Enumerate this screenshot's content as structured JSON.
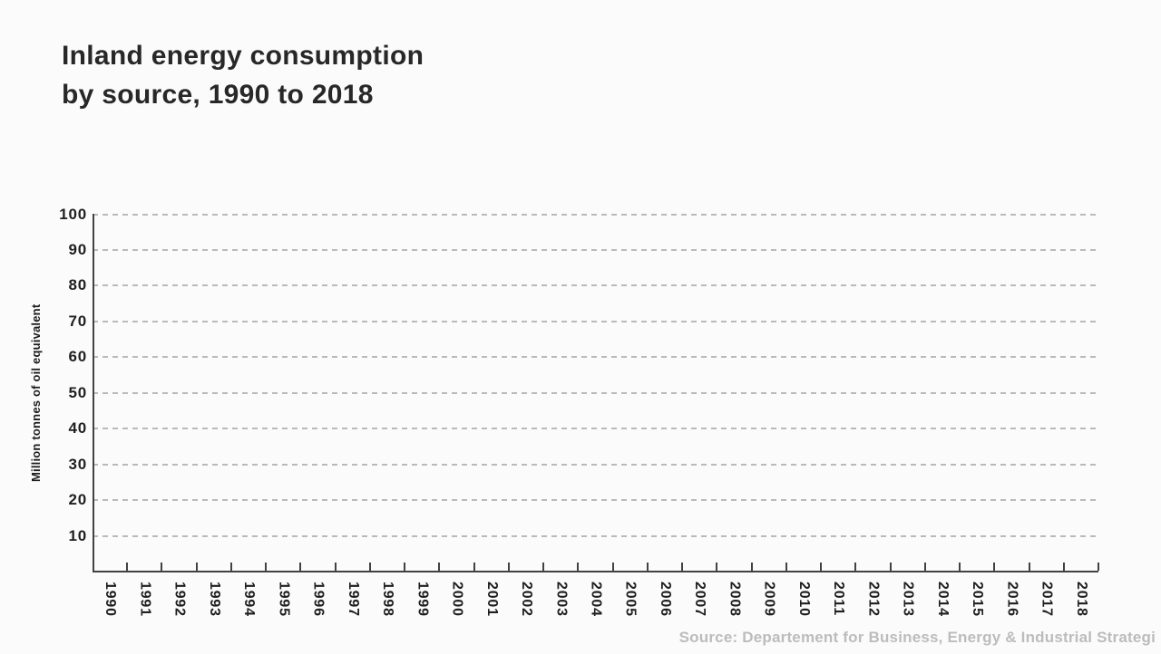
{
  "chart_data": {
    "type": "line",
    "title": "Inland energy consumption by source, 1990 to 2018",
    "title_lines": [
      "Inland energy consumption",
      "by source, 1990 to 2018"
    ],
    "xlabel": "",
    "ylabel": "Million tonnes of oil equivalent",
    "x": [
      1990,
      1991,
      1992,
      1993,
      1994,
      1995,
      1996,
      1997,
      1998,
      1999,
      2000,
      2001,
      2002,
      2003,
      2004,
      2005,
      2006,
      2007,
      2008,
      2009,
      2010,
      2011,
      2012,
      2013,
      2014,
      2015,
      2016,
      2017,
      2018
    ],
    "series": [],
    "ylim": [
      0,
      100
    ],
    "y_ticks": [
      10,
      20,
      30,
      40,
      50,
      60,
      70,
      80,
      90,
      100
    ],
    "grid": "horizontal-dashed",
    "legend": "none",
    "note_source": "Source: Departement for Business, Energy & Industrial Strategi"
  },
  "header": {
    "title_line1": "Inland energy consumption",
    "title_line2": "by source, 1990 to 2018"
  },
  "axes": {
    "y_label": "Million tonnes of oil equivalent",
    "y_ticks": [
      10,
      20,
      30,
      40,
      50,
      60,
      70,
      80,
      90,
      100
    ],
    "x_ticks": [
      "1990",
      "1991",
      "1992",
      "1993",
      "1994",
      "1995",
      "1996",
      "1997",
      "1998",
      "1999",
      "2000",
      "2001",
      "2002",
      "2003",
      "2004",
      "2005",
      "2006",
      "2007",
      "2008",
      "2009",
      "2010",
      "2011",
      "2012",
      "2013",
      "2014",
      "2015",
      "2016",
      "2017",
      "2018"
    ]
  },
  "footer": {
    "source": "Source: Departement for Business, Energy & Industrial Strategi"
  },
  "colors": {
    "background": "#fbfbfb",
    "axis": "#424242",
    "gridline": "#a9a9a9",
    "title_text": "#282828",
    "tick_text": "#1f1f1f",
    "source_text": "#bcbcbc"
  }
}
